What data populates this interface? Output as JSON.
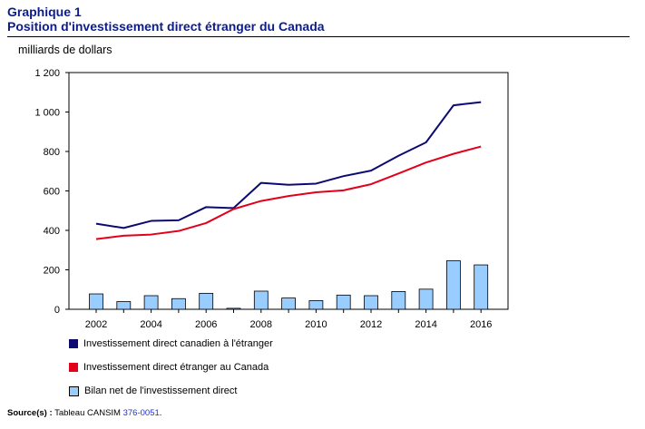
{
  "header": {
    "label": "Graphique 1",
    "title": "Position d'investissement direct étranger du Canada"
  },
  "chart_data": {
    "type": "line",
    "unit_label": "milliards de dollars",
    "x": [
      2002,
      2003,
      2004,
      2005,
      2006,
      2007,
      2008,
      2009,
      2010,
      2011,
      2012,
      2013,
      2014,
      2015,
      2016
    ],
    "x_tick_labels": [
      "2002",
      "2004",
      "2006",
      "2008",
      "2010",
      "2012",
      "2014",
      "2016"
    ],
    "y_tick_labels": [
      "0",
      "200",
      "400",
      "600",
      "800",
      "1 000",
      "1 200"
    ],
    "ylim": [
      0,
      1200
    ],
    "grid": false,
    "legend_position": "bottom",
    "series": [
      {
        "name": "Investissement direct canadien à l'étranger",
        "type": "line",
        "color": "#0c0a72",
        "values": [
          434,
          412,
          448,
          451,
          518,
          513,
          641,
          631,
          637,
          675,
          703,
          778,
          846,
          1034,
          1050
        ]
      },
      {
        "name": "Investissement direct étranger au Canada",
        "type": "line",
        "color": "#e2001a",
        "values": [
          356,
          373,
          379,
          397,
          437,
          508,
          549,
          574,
          593,
          603,
          634,
          688,
          744,
          788,
          825
        ]
      },
      {
        "name": "Bilan net de l'investissement direct",
        "type": "bar",
        "color": "#99ccff",
        "values": [
          78,
          39,
          69,
          54,
          81,
          5,
          92,
          57,
          44,
          72,
          69,
          90,
          102,
          246,
          225
        ]
      }
    ]
  },
  "source": {
    "label": "Source(s) :",
    "text": "Tableau CANSIM",
    "link": "376-0051",
    "end": "."
  }
}
